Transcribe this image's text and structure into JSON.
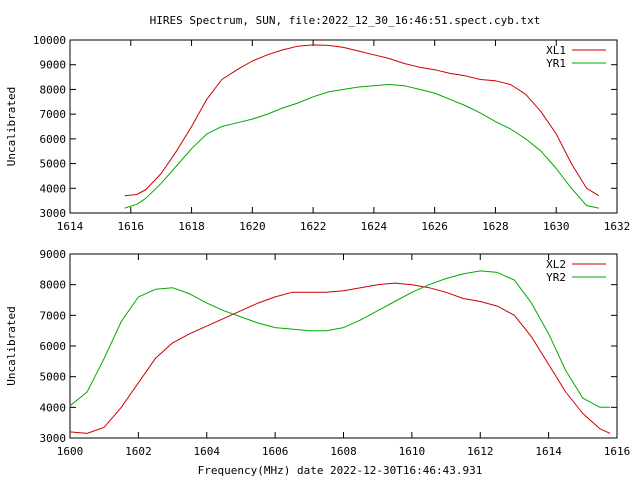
{
  "chart_data": [
    {
      "type": "line",
      "title": "HIRES Spectrum, SUN, file:2022_12_30_16:46:51.spect.cyb.txt",
      "xlabel": "",
      "ylabel": "Uncalibrated",
      "xlim": [
        1614,
        1632
      ],
      "ylim": [
        3000,
        10000
      ],
      "xticks": [
        1614,
        1616,
        1618,
        1620,
        1622,
        1624,
        1626,
        1628,
        1630,
        1632
      ],
      "yticks": [
        3000,
        4000,
        5000,
        6000,
        7000,
        8000,
        9000,
        10000
      ],
      "legend": "top-right",
      "grid": false,
      "series": [
        {
          "name": "XL1",
          "color": "#cc0000",
          "points": [
            [
              1615.8,
              3700
            ],
            [
              1616.2,
              3750
            ],
            [
              1616.5,
              3950
            ],
            [
              1617.0,
              4600
            ],
            [
              1617.5,
              5500
            ],
            [
              1618.0,
              6500
            ],
            [
              1618.5,
              7600
            ],
            [
              1619.0,
              8400
            ],
            [
              1619.5,
              8800
            ],
            [
              1620.0,
              9150
            ],
            [
              1620.5,
              9400
            ],
            [
              1621.0,
              9600
            ],
            [
              1621.5,
              9750
            ],
            [
              1622.0,
              9800
            ],
            [
              1622.5,
              9780
            ],
            [
              1623.0,
              9700
            ],
            [
              1623.5,
              9550
            ],
            [
              1624.0,
              9400
            ],
            [
              1624.5,
              9250
            ],
            [
              1625.0,
              9050
            ],
            [
              1625.5,
              8900
            ],
            [
              1626.0,
              8800
            ],
            [
              1626.5,
              8650
            ],
            [
              1627.0,
              8550
            ],
            [
              1627.5,
              8400
            ],
            [
              1628.0,
              8350
            ],
            [
              1628.5,
              8200
            ],
            [
              1629.0,
              7800
            ],
            [
              1629.5,
              7100
            ],
            [
              1630.0,
              6200
            ],
            [
              1630.5,
              5000
            ],
            [
              1631.0,
              4000
            ],
            [
              1631.4,
              3700
            ]
          ]
        },
        {
          "name": "YR1",
          "color": "#00aa00",
          "points": [
            [
              1615.8,
              3200
            ],
            [
              1616.2,
              3350
            ],
            [
              1616.5,
              3600
            ],
            [
              1617.0,
              4200
            ],
            [
              1617.5,
              4900
            ],
            [
              1618.0,
              5600
            ],
            [
              1618.5,
              6200
            ],
            [
              1619.0,
              6500
            ],
            [
              1619.5,
              6650
            ],
            [
              1620.0,
              6800
            ],
            [
              1620.5,
              7000
            ],
            [
              1621.0,
              7250
            ],
            [
              1621.5,
              7450
            ],
            [
              1622.0,
              7700
            ],
            [
              1622.5,
              7900
            ],
            [
              1623.0,
              8000
            ],
            [
              1623.5,
              8100
            ],
            [
              1624.0,
              8150
            ],
            [
              1624.5,
              8200
            ],
            [
              1625.0,
              8150
            ],
            [
              1625.5,
              8000
            ],
            [
              1626.0,
              7850
            ],
            [
              1626.5,
              7600
            ],
            [
              1627.0,
              7350
            ],
            [
              1627.5,
              7050
            ],
            [
              1628.0,
              6700
            ],
            [
              1628.5,
              6400
            ],
            [
              1629.0,
              6000
            ],
            [
              1629.5,
              5500
            ],
            [
              1630.0,
              4800
            ],
            [
              1630.5,
              4000
            ],
            [
              1631.0,
              3300
            ],
            [
              1631.4,
              3200
            ]
          ]
        }
      ]
    },
    {
      "type": "line",
      "title": "",
      "xlabel": "Frequency(MHz) date 2022-12-30T16:46:43.931",
      "ylabel": "Uncalibrated",
      "xlim": [
        1600,
        1616
      ],
      "ylim": [
        3000,
        9000
      ],
      "xticks": [
        1600,
        1602,
        1604,
        1606,
        1608,
        1610,
        1612,
        1614,
        1616
      ],
      "yticks": [
        3000,
        4000,
        5000,
        6000,
        7000,
        8000,
        9000
      ],
      "legend": "top-right",
      "grid": false,
      "series": [
        {
          "name": "XL2",
          "color": "#cc0000",
          "points": [
            [
              1600.0,
              3200
            ],
            [
              1600.5,
              3150
            ],
            [
              1601.0,
              3350
            ],
            [
              1601.5,
              4000
            ],
            [
              1602.0,
              4800
            ],
            [
              1602.5,
              5600
            ],
            [
              1603.0,
              6100
            ],
            [
              1603.5,
              6400
            ],
            [
              1604.0,
              6650
            ],
            [
              1604.5,
              6900
            ],
            [
              1605.0,
              7150
            ],
            [
              1605.5,
              7400
            ],
            [
              1606.0,
              7600
            ],
            [
              1606.5,
              7750
            ],
            [
              1607.0,
              7750
            ],
            [
              1607.5,
              7750
            ],
            [
              1608.0,
              7800
            ],
            [
              1608.5,
              7900
            ],
            [
              1609.0,
              8000
            ],
            [
              1609.5,
              8050
            ],
            [
              1610.0,
              8000
            ],
            [
              1610.5,
              7900
            ],
            [
              1611.0,
              7750
            ],
            [
              1611.5,
              7550
            ],
            [
              1612.0,
              7450
            ],
            [
              1612.5,
              7300
            ],
            [
              1613.0,
              7000
            ],
            [
              1613.5,
              6300
            ],
            [
              1614.0,
              5400
            ],
            [
              1614.5,
              4500
            ],
            [
              1615.0,
              3800
            ],
            [
              1615.5,
              3300
            ],
            [
              1615.8,
              3150
            ]
          ]
        },
        {
          "name": "YR2",
          "color": "#00aa00",
          "points": [
            [
              1600.0,
              4050
            ],
            [
              1600.5,
              4500
            ],
            [
              1601.0,
              5600
            ],
            [
              1601.5,
              6800
            ],
            [
              1602.0,
              7600
            ],
            [
              1602.5,
              7850
            ],
            [
              1603.0,
              7900
            ],
            [
              1603.5,
              7700
            ],
            [
              1604.0,
              7400
            ],
            [
              1604.5,
              7150
            ],
            [
              1605.0,
              6950
            ],
            [
              1605.5,
              6750
            ],
            [
              1606.0,
              6600
            ],
            [
              1606.5,
              6550
            ],
            [
              1607.0,
              6500
            ],
            [
              1607.5,
              6500
            ],
            [
              1608.0,
              6600
            ],
            [
              1608.5,
              6850
            ],
            [
              1609.0,
              7150
            ],
            [
              1609.5,
              7450
            ],
            [
              1610.0,
              7750
            ],
            [
              1610.5,
              8000
            ],
            [
              1611.0,
              8200
            ],
            [
              1611.5,
              8350
            ],
            [
              1612.0,
              8450
            ],
            [
              1612.5,
              8400
            ],
            [
              1613.0,
              8150
            ],
            [
              1613.5,
              7400
            ],
            [
              1614.0,
              6400
            ],
            [
              1614.5,
              5200
            ],
            [
              1615.0,
              4300
            ],
            [
              1615.5,
              4000
            ],
            [
              1615.8,
              4000
            ]
          ]
        }
      ]
    }
  ]
}
